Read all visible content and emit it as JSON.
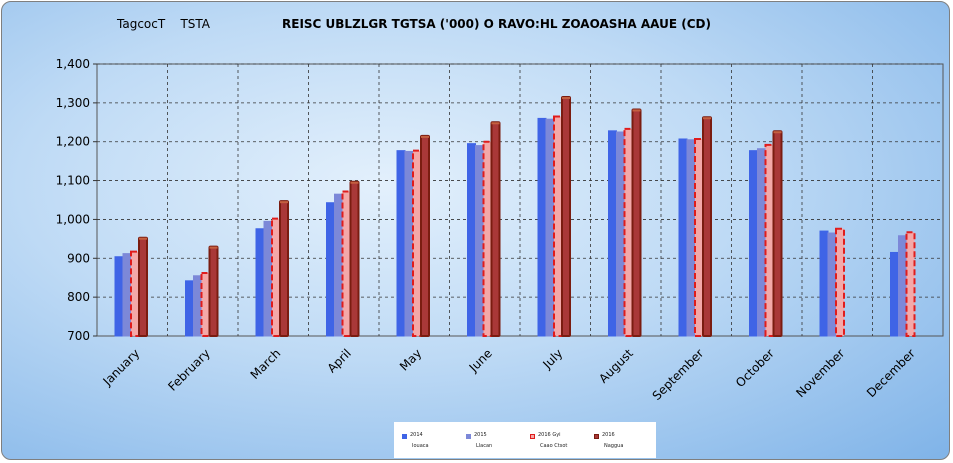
{
  "header": {
    "pre_title": "TagcocT    TSTA",
    "title": "REISC UBLZLGR TGTSA ('000) O RAVO:HL ZOAOASHA AAUE (CD)"
  },
  "chart_data": {
    "type": "bar",
    "categories": [
      "January",
      "February",
      "March",
      "April",
      "May",
      "June",
      "July",
      "August",
      "September",
      "October",
      "November",
      "December"
    ],
    "ylim": [
      700,
      1400
    ],
    "yticks": [
      "700",
      "800",
      "900",
      "1,000",
      "1,100",
      "1,200",
      "1,300",
      "1,400"
    ],
    "ytick_values": [
      700,
      800,
      900,
      1000,
      1100,
      1200,
      1300,
      1400
    ],
    "grid": "dashed",
    "legend_position": "bottom",
    "series": [
      {
        "name": "2014",
        "sublabel": "Iouaca",
        "color": "#3f64e6",
        "style": "solid",
        "values": [
          904,
          842,
          976,
          1043,
          1177,
          1195,
          1260,
          1228,
          1207,
          1177,
          970,
          915
        ]
      },
      {
        "name": "2015",
        "sublabel": "Llacan",
        "color": "#7c88d8",
        "style": "solid",
        "values": [
          912,
          855,
          995,
          1065,
          1175,
          1190,
          1258,
          1225,
          1205,
          1182,
          965,
          958
        ]
      },
      {
        "name": "2016 Gyi",
        "sublabel": "Caao Ctsot",
        "color": "#f4a8a8",
        "style": "dashed",
        "values": [
          917,
          862,
          1002,
          1072,
          1177,
          1200,
          1265,
          1233,
          1207,
          1192,
          976,
          967
        ]
      },
      {
        "name": "2016",
        "sublabel": "Naggua",
        "color": "#a93838",
        "style": "solid",
        "values": [
          953,
          930,
          1047,
          1097,
          1215,
          1250,
          1315,
          1283,
          1263,
          1227,
          null,
          null
        ]
      }
    ]
  }
}
